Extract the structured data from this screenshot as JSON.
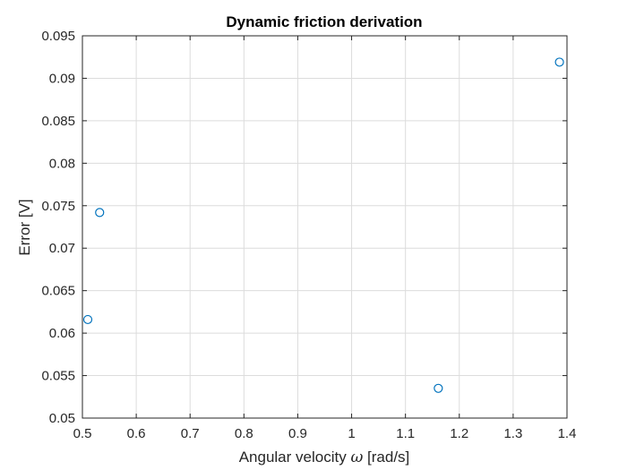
{
  "chart_data": {
    "type": "scatter",
    "title": "Dynamic friction derivation",
    "xlabel_prefix": "Angular velocity ",
    "xlabel_symbol": "ω",
    "xlabel_suffix": " [rad/s]",
    "ylabel": "Error [V]",
    "xlim": [
      0.5,
      1.4
    ],
    "ylim": [
      0.05,
      0.095
    ],
    "xticks": [
      "0.5",
      "0.6",
      "0.7",
      "0.8",
      "0.9",
      "1",
      "1.1",
      "1.2",
      "1.3",
      "1.4"
    ],
    "yticks": [
      "0.05",
      "0.055",
      "0.06",
      "0.065",
      "0.07",
      "0.075",
      "0.08",
      "0.085",
      "0.09",
      "0.095"
    ],
    "grid": true,
    "marker": "circle",
    "marker_color": "#0072bd",
    "x": [
      0.51,
      0.532,
      1.161,
      1.386
    ],
    "y": [
      0.0616,
      0.0742,
      0.0535,
      0.0919
    ]
  }
}
